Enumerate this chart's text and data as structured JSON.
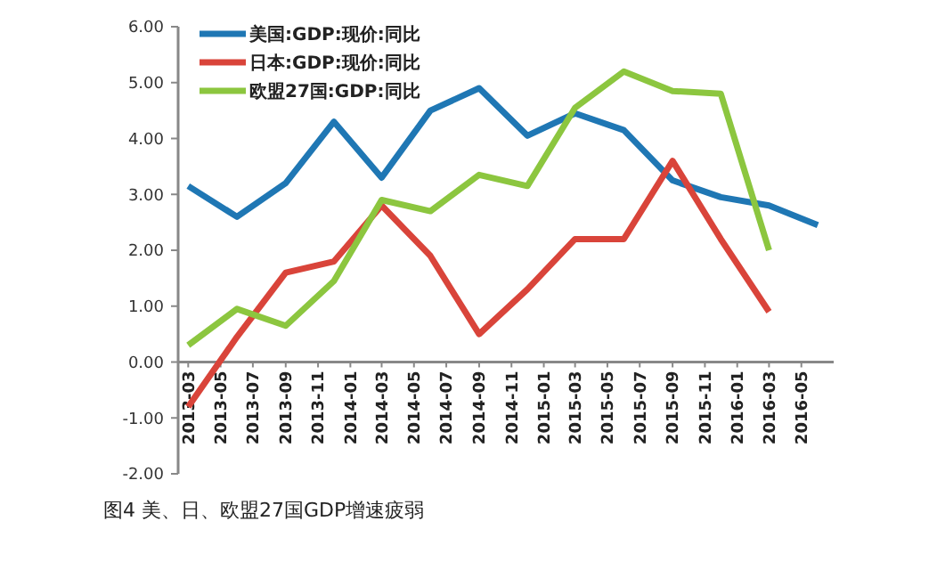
{
  "chart_data": {
    "type": "line",
    "title": "图4 美、日、欧盟27国GDP增速疲弱",
    "x": [
      "2013-03",
      "2013-06",
      "2013-09",
      "2013-12",
      "2014-03",
      "2014-06",
      "2014-09",
      "2014-12",
      "2015-03",
      "2015-06",
      "2015-09",
      "2015-12",
      "2016-03",
      "2016-06"
    ],
    "series": [
      {
        "name": "美国:GDP:现价:同比",
        "color": "#1f77b4",
        "values": [
          3.15,
          2.6,
          3.2,
          4.3,
          3.3,
          4.5,
          4.9,
          4.05,
          4.45,
          4.15,
          3.25,
          2.95,
          2.8,
          2.45
        ]
      },
      {
        "name": "日本:GDP:现价:同比",
        "color": "#d9443a",
        "values": [
          -0.8,
          0.45,
          1.6,
          1.8,
          2.8,
          1.9,
          0.5,
          1.3,
          2.2,
          2.2,
          3.6,
          2.2,
          0.9,
          null
        ]
      },
      {
        "name": "欧盟27国:GDP:同比",
        "color": "#8cc63f",
        "values": [
          0.3,
          0.95,
          0.65,
          1.45,
          2.9,
          2.7,
          3.35,
          3.15,
          4.55,
          5.2,
          4.85,
          4.8,
          2.0,
          null
        ]
      }
    ],
    "xlim": [
      "2013-02-10",
      "2016-07-01"
    ],
    "xticks": [
      "2013-03",
      "2013-05",
      "2013-07",
      "2013-09",
      "2013-11",
      "2014-01",
      "2014-03",
      "2014-05",
      "2014-07",
      "2014-09",
      "2014-11",
      "2015-01",
      "2015-03",
      "2015-05",
      "2015-07",
      "2015-09",
      "2015-11",
      "2016-01",
      "2016-03",
      "2016-05"
    ],
    "ylim": [
      -2,
      6
    ],
    "yticks": [
      {
        "value": -2,
        "label": "-2.00"
      },
      {
        "value": -1,
        "label": "-1.00"
      },
      {
        "value": 0,
        "label": "0.00"
      },
      {
        "value": 1,
        "label": "1.00"
      },
      {
        "value": 2,
        "label": "2.00"
      },
      {
        "value": 3,
        "label": "3.00"
      },
      {
        "value": 4,
        "label": "4.00"
      },
      {
        "value": 5,
        "label": "5.00"
      },
      {
        "value": 6,
        "label": "6.00"
      }
    ],
    "grid": false,
    "legend": "top left",
    "marker": "none",
    "line_style": "solid"
  }
}
